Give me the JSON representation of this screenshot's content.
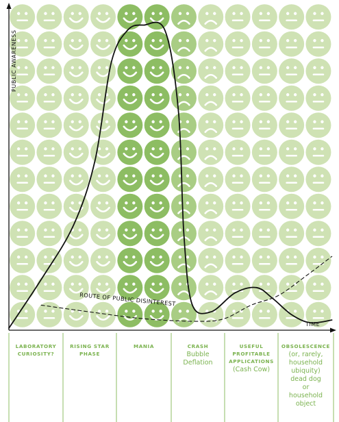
{
  "colors": {
    "face_light": "#cfe2b4",
    "face_mid": "#a9cd84",
    "face_dark": "#8dbd63",
    "feature": "#ffffff",
    "curve": "#111111",
    "phase_text": "#7ab24e",
    "phase_divider": "#8dbd63"
  },
  "icons": {
    "neutral": "neutral-face-icon",
    "happy": "smiley-face-icon",
    "sad": "sad-face-icon"
  },
  "chart_data": {
    "type": "line",
    "title": "",
    "ylabel": "PUBLIC AWARENESS",
    "xlabel": "TIME",
    "xlim": [
      0,
      12
    ],
    "ylim": [
      0,
      12
    ],
    "grid": {
      "rows": 12,
      "columns": 12,
      "column_moods": [
        "neutral",
        "neutral",
        "happy",
        "happy",
        "happy",
        "happy",
        "sad",
        "sad",
        "neutral",
        "neutral",
        "neutral",
        "neutral"
      ],
      "column_shades": [
        "light",
        "light",
        "light",
        "light",
        "dark",
        "dark",
        "mid",
        "light",
        "light",
        "light",
        "light",
        "light"
      ]
    },
    "series": [
      {
        "style": "solid",
        "x": [
          0,
          1.2,
          2.4,
          3.2,
          3.8,
          4.4,
          5.0,
          5.8,
          6.3,
          6.5,
          6.8,
          7.5,
          8.4,
          9.2,
          9.8,
          10.5,
          11.2,
          12.0
        ],
        "y": [
          0,
          1.8,
          3.8,
          6.2,
          9.8,
          11.0,
          11.2,
          11.0,
          8.0,
          3.5,
          0.9,
          0.6,
          1.3,
          1.5,
          1.1,
          0.5,
          0.2,
          0.3
        ]
      },
      {
        "style": "dashed",
        "label": "ROUTE OF PUBLIC DISINTEREST",
        "x": [
          1.2,
          3.0,
          5.0,
          7.0,
          8.0,
          9.0,
          10.0,
          11.0,
          12.0
        ],
        "y": [
          0.85,
          0.6,
          0.35,
          0.25,
          0.35,
          0.85,
          1.2,
          1.9,
          2.65
        ]
      }
    ],
    "phases": [
      {
        "title": "LABORATORY\nCURIOSITY?",
        "sub": ""
      },
      {
        "title": "RISING STAR\nPHASE",
        "sub": ""
      },
      {
        "title": "MANIA",
        "sub": ""
      },
      {
        "title": "CRASH",
        "sub": "Bubble\nDeflation"
      },
      {
        "title": "USEFUL\nPROFITABLE\nAPPLICATIONS",
        "sub": "(Cash Cow)"
      },
      {
        "title": "OBSOLESCENCE",
        "sub": "(or, rarely,\nhousehold\nubiquity)\ndead dog\nor\nhousehold\nobject"
      }
    ]
  }
}
